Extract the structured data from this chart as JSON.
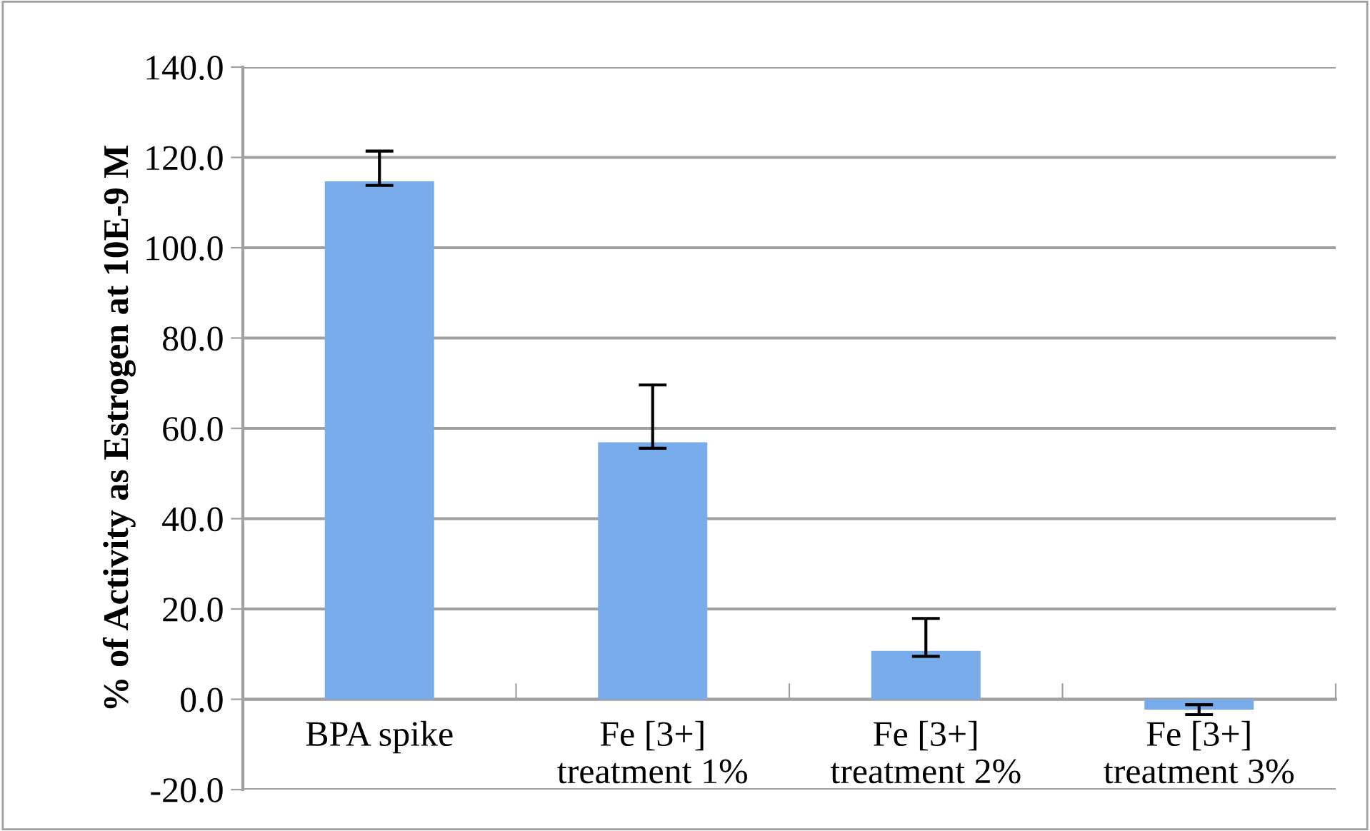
{
  "chart_data": {
    "type": "bar",
    "ylabel": "% of Activity as Estrogen at 10E-9 M",
    "categories": [
      "BPA spike",
      "Fe [3+]\ntreatment 1%",
      "Fe [3+]\ntreatment 2%",
      "Fe [3+]\ntreatment 3%"
    ],
    "values": [
      114.7,
      56.9,
      10.7,
      -2.3
    ],
    "errors": [
      [
        113.8,
        121.4
      ],
      [
        55.6,
        69.6
      ],
      [
        9.5,
        17.9
      ],
      [
        -3.4,
        -1.2
      ]
    ],
    "color": "#79acea",
    "ylim": [
      -20,
      140
    ],
    "yticks": [
      {
        "value": -20,
        "label": "-20.0"
      },
      {
        "value": 0,
        "label": "0.0"
      },
      {
        "value": 20,
        "label": "20.0"
      },
      {
        "value": 40,
        "label": "40.0"
      },
      {
        "value": 60,
        "label": "60.0"
      },
      {
        "value": 80,
        "label": "80.0"
      },
      {
        "value": 100,
        "label": "100.0"
      },
      {
        "value": 120,
        "label": "120.0"
      },
      {
        "value": 140,
        "label": "140.0"
      }
    ],
    "grid": "y"
  }
}
